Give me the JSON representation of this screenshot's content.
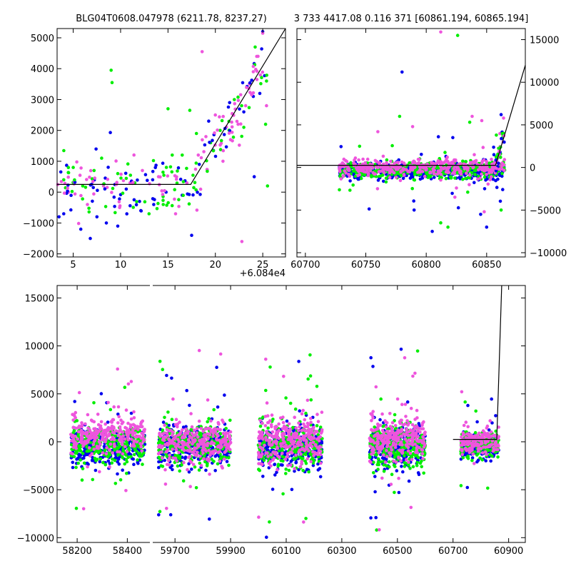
{
  "colors": {
    "blue": "#0000ee",
    "green": "#00ee00",
    "pink": "#ee55dd",
    "model_line": "#000000"
  },
  "titles": {
    "left": "BLG04T0608.047978 (6211.78, 8237.27)",
    "right": "3 733 4417.08 0.116 371 [60861.194, 60865.194]"
  },
  "offset_label": "+6.084e4",
  "chart_data": [
    {
      "type": "scatter",
      "panel": "top-left zoom of the final rise",
      "x_offset": 60840,
      "xlim": [
        3.3,
        27.4
      ],
      "ylim": [
        -2100,
        5300
      ],
      "xticks": [
        5,
        10,
        15,
        20,
        25
      ],
      "yticks": [
        -2000,
        -1000,
        0,
        1000,
        2000,
        3000,
        4000,
        5000
      ],
      "series": [
        {
          "color": "green",
          "points": [
            [
              4.0,
              400
            ],
            [
              5.0,
              800
            ],
            [
              6.0,
              200
            ],
            [
              7.2,
              700
            ],
            [
              8.0,
              1100
            ],
            [
              9.0,
              3950
            ],
            [
              9.1,
              3550
            ],
            [
              9.7,
              600
            ],
            [
              11.5,
              300
            ],
            [
              13.0,
              -700
            ],
            [
              14.5,
              -400
            ],
            [
              15.0,
              2700
            ],
            [
              16.5,
              1200
            ],
            [
              17.3,
              2650
            ],
            [
              18.0,
              1900
            ],
            [
              19.5,
              1600
            ],
            [
              20.5,
              2000
            ],
            [
              22.0,
              3000
            ],
            [
              23.0,
              2100
            ],
            [
              24.2,
              4700
            ],
            [
              25.3,
              2200
            ],
            [
              25.5,
              200
            ]
          ]
        },
        {
          "color": "blue",
          "points": [
            [
              3.5,
              -800
            ],
            [
              4.0,
              -700
            ],
            [
              5.8,
              -1200
            ],
            [
              6.8,
              -1500
            ],
            [
              7.5,
              -800
            ],
            [
              8.5,
              -1000
            ],
            [
              9.7,
              -1100
            ],
            [
              10.6,
              100
            ],
            [
              12.0,
              -300
            ],
            [
              13.5,
              -400
            ],
            [
              14.8,
              0
            ],
            [
              16.5,
              -100
            ],
            [
              17.5,
              -1400
            ],
            [
              18.3,
              900
            ],
            [
              19.3,
              2300
            ],
            [
              21.5,
              2900
            ],
            [
              23.0,
              2600
            ],
            [
              24.0,
              3100
            ],
            [
              24.1,
              500
            ],
            [
              25.0,
              5200
            ]
          ]
        },
        {
          "color": "pink",
          "points": [
            [
              4.5,
              0
            ],
            [
              6.5,
              -400
            ],
            [
              8.2,
              200
            ],
            [
              9.9,
              -500
            ],
            [
              11.0,
              300
            ],
            [
              12.3,
              700
            ],
            [
              14.0,
              500
            ],
            [
              15.8,
              -700
            ],
            [
              17.0,
              300
            ],
            [
              18.2,
              1200
            ],
            [
              18.6,
              4550
            ],
            [
              19.0,
              1800
            ],
            [
              20.0,
              2500
            ],
            [
              20.8,
              1000
            ],
            [
              21.6,
              1700
            ],
            [
              22.4,
              2200
            ],
            [
              22.8,
              -1600
            ],
            [
              23.2,
              2800
            ],
            [
              23.6,
              3500
            ],
            [
              24.0,
              3900
            ],
            [
              24.5,
              4400
            ],
            [
              25.0,
              5150
            ],
            [
              25.4,
              2800
            ]
          ]
        }
      ],
      "model_line": [
        [
          3.3,
          250
        ],
        [
          17.4,
          250
        ],
        [
          27.4,
          5300
        ]
      ]
    },
    {
      "type": "scatter",
      "panel": "top-right last season",
      "xlim": [
        60693,
        60882
      ],
      "ylim": [
        -10500,
        16300
      ],
      "xticks": [
        60700,
        60750,
        60800,
        60850
      ],
      "yticks": [
        -10000,
        -5000,
        0,
        5000,
        10000,
        15000
      ],
      "yaxis_position": "right",
      "season": {
        "range": [
          60728,
          60865
        ],
        "center_std": 650,
        "outliers": {
          "blue": [
            [
              60780,
              11200
            ],
            [
              60790,
              -5000
            ],
            [
              60805,
              -7500
            ],
            [
              60822,
              3500
            ],
            [
              60845,
              -5500
            ],
            [
              60850,
              -7000
            ],
            [
              60856,
              1500
            ],
            [
              60862,
              6200
            ]
          ],
          "green": [
            [
              60778,
              6000
            ],
            [
              60812,
              -6500
            ],
            [
              60818,
              -7000
            ],
            [
              60826,
              15500
            ],
            [
              60836,
              5300
            ],
            [
              60858,
              3800
            ],
            [
              60862,
              -5000
            ],
            [
              60863,
              4000
            ]
          ],
          "pink": [
            [
              60812,
              15900
            ],
            [
              60838,
              6000
            ],
            [
              60846,
              5500
            ],
            [
              60760,
              4200
            ],
            [
              60848,
              -5200
            ],
            [
              60864,
              5800
            ]
          ]
        }
      },
      "model_line": [
        [
          60693,
          250
        ],
        [
          60857.4,
          250
        ],
        [
          60882,
          12000
        ]
      ]
    },
    {
      "type": "scatter",
      "panel": "bottom full light curve (broken x axis)",
      "ylim": [
        -10500,
        16300
      ],
      "yticks": [
        -10000,
        -5000,
        0,
        5000,
        10000,
        15000
      ],
      "segments": [
        {
          "xlim": [
            58120,
            58490
          ],
          "xticks": [
            58200,
            58400
          ]
        },
        {
          "xlim": [
            59620,
            60960
          ],
          "xticks": [
            59700,
            59900,
            60100,
            60300,
            60500,
            60700,
            60900
          ]
        }
      ],
      "seasons": [
        {
          "range": [
            58175,
            58470
          ],
          "center_std": 1300,
          "pink_offset": 800
        },
        {
          "range": [
            59640,
            59900
          ],
          "center_std": 1500,
          "pink_offset": 0
        },
        {
          "range": [
            60000,
            60230
          ],
          "center_std": 1700,
          "pink_offset": 200
        },
        {
          "range": [
            60400,
            60600
          ],
          "center_std": 1600,
          "pink_offset": 400
        },
        {
          "range": [
            60728,
            60865
          ],
          "center_std": 900,
          "pink_offset": 0
        }
      ],
      "model_line": [
        [
          60700,
          250
        ],
        [
          60857.4,
          250
        ],
        [
          60875,
          16300
        ]
      ]
    }
  ]
}
